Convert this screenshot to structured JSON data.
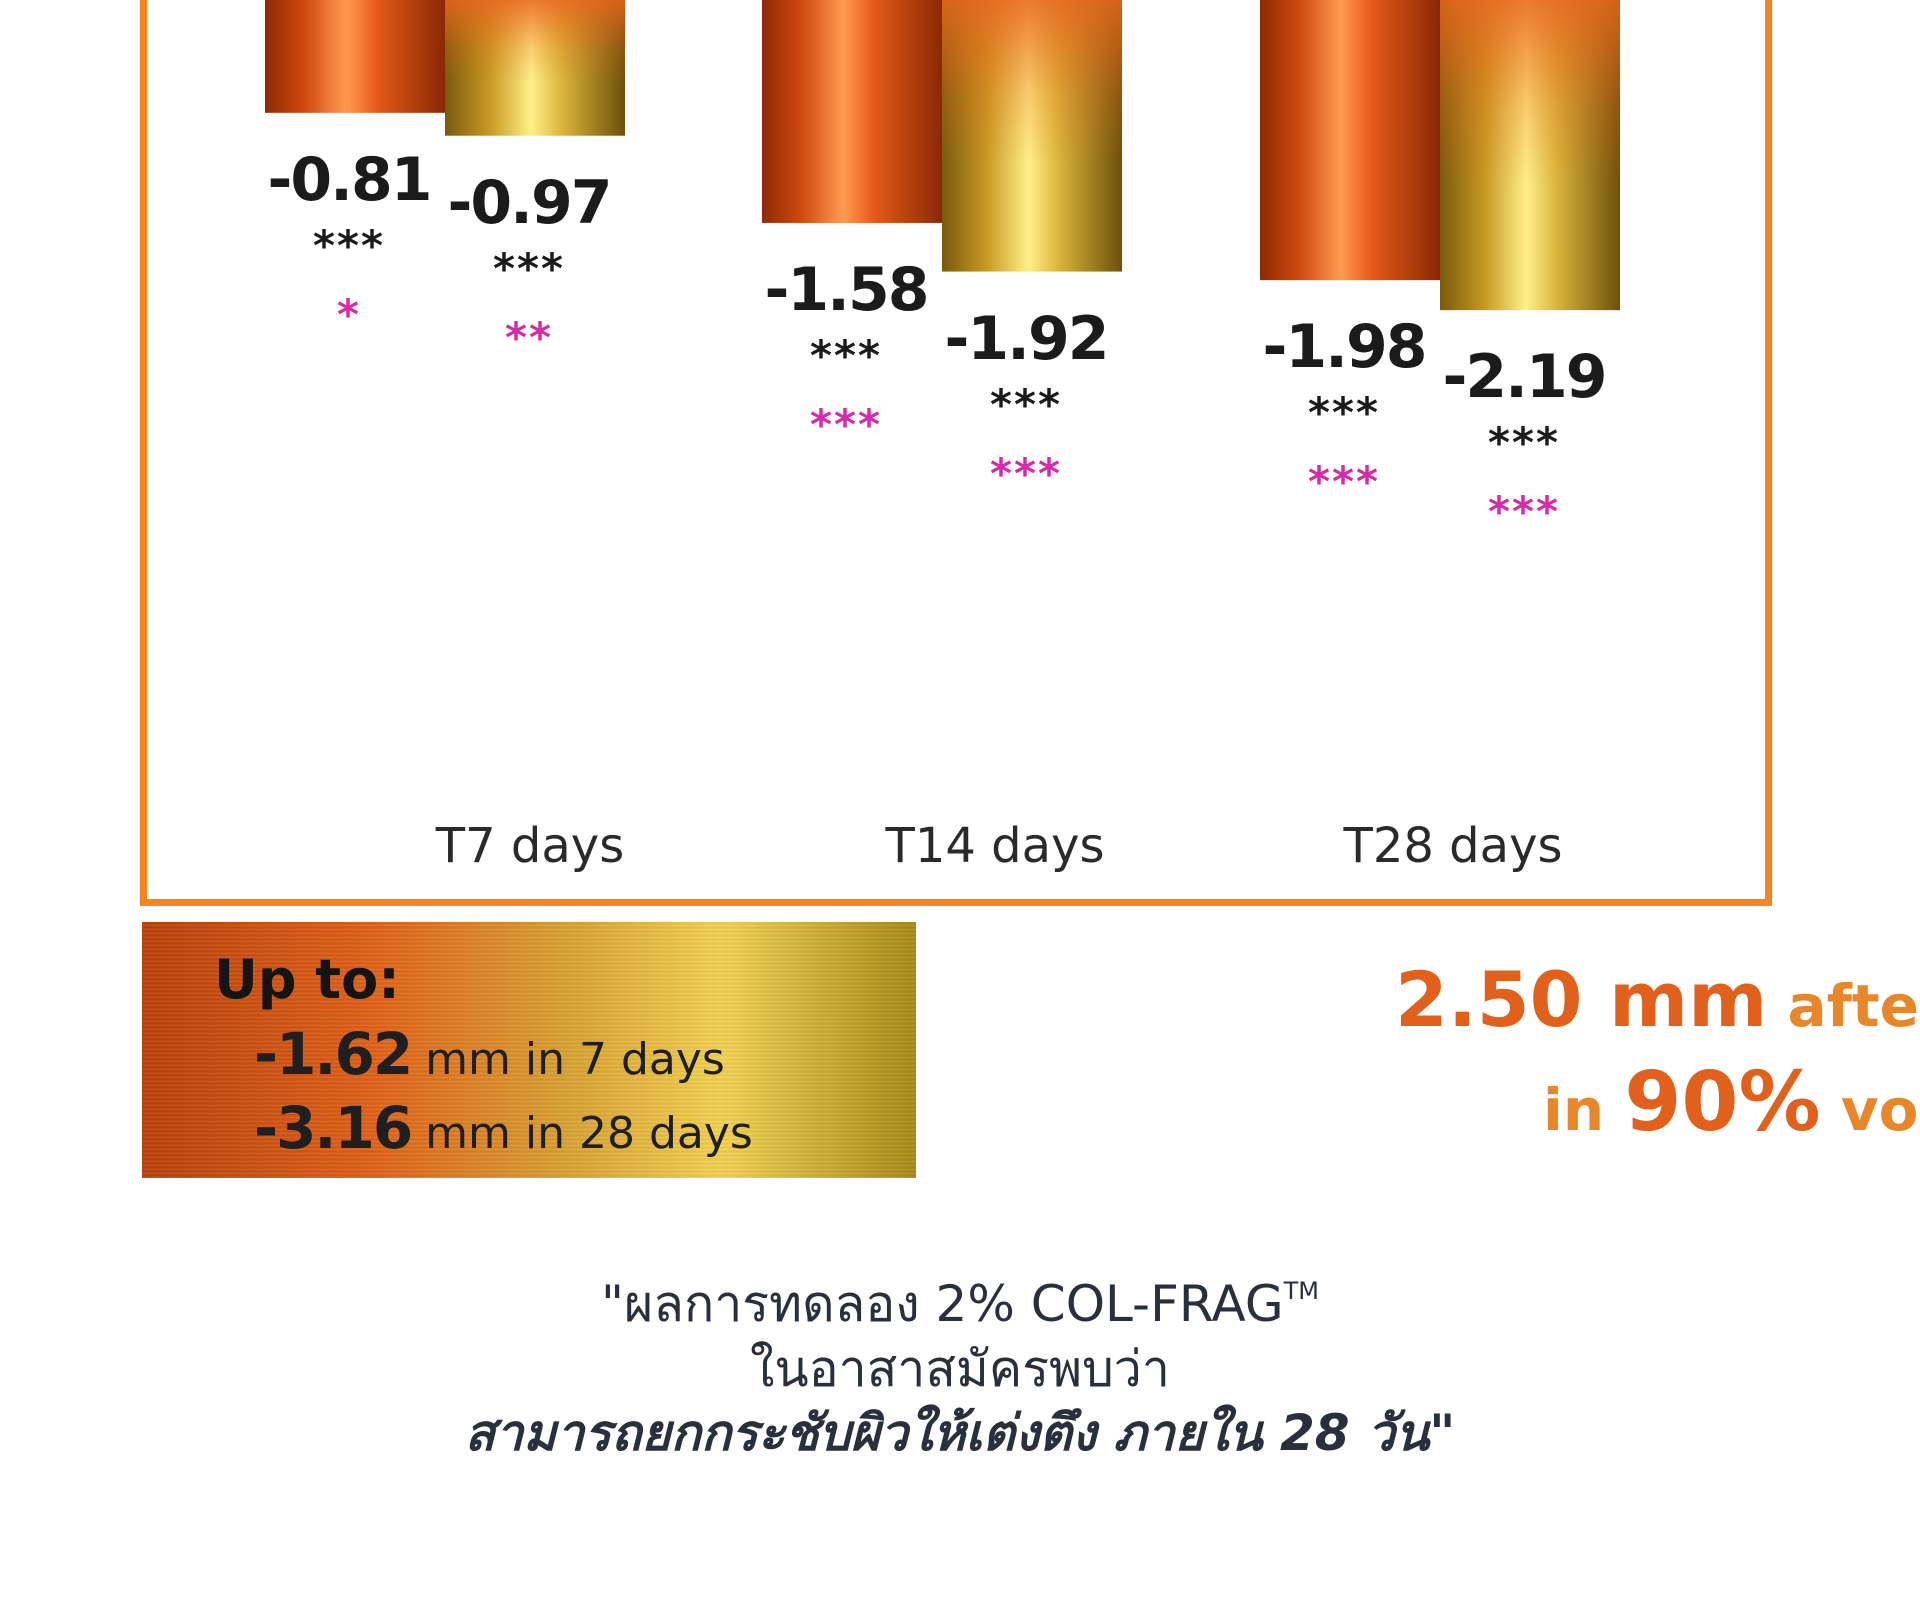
{
  "chart_data": {
    "type": "bar",
    "categories": [
      "T7 days",
      "T14 days",
      "T28 days"
    ],
    "series": [
      {
        "values": [
          -0.81,
          -1.58,
          -1.98
        ],
        "value_labels": [
          "-0.81",
          "-1.58",
          "-1.98"
        ],
        "significance_black": [
          "***",
          "***",
          "***"
        ],
        "significance_pink": [
          "*",
          "***",
          "***"
        ],
        "color": "#e2571a"
      },
      {
        "values": [
          -0.97,
          -1.92,
          -2.19
        ],
        "value_labels": [
          "-0.97",
          "-1.92",
          "-2.19"
        ],
        "significance_black": [
          "***",
          "***",
          "***"
        ],
        "significance_pink": [
          "**",
          "***",
          "***"
        ],
        "color": "#d6b33a"
      }
    ],
    "ylim": [
      -2.6,
      0
    ],
    "grid": false,
    "frame_color": "#f5861f",
    "significance_colors": {
      "black": "#1b1b1b",
      "pink": "#d62aa8"
    }
  },
  "summary": {
    "title": "Up to:",
    "line1_value": "-1.62",
    "line1_text": " mm in 7 days",
    "line2_value": "-3.16",
    "line2_text": " mm in 28 days"
  },
  "callout": {
    "line1_value": "2.50 mm",
    "line1_text": " after ",
    "line2_prefix": "in ",
    "line2_value": "90%",
    "line2_text": " vol"
  },
  "quote": {
    "line1": "\"ผลการทดลอง 2% COL-FRAG",
    "line1_tm": "TM",
    "line2": "ในอาสาสมัครพบว่า",
    "line3": "สามารถยกกระชับผิวให้เต่งตึง ภายใน 28 วัน\""
  }
}
